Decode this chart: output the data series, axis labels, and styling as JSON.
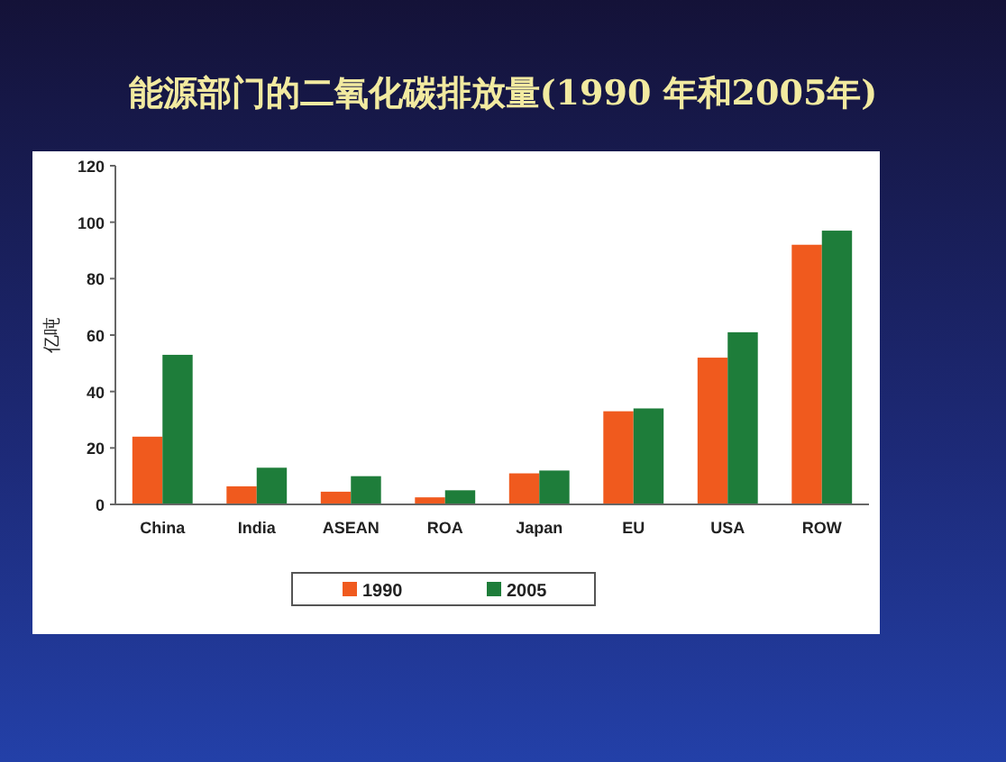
{
  "chart_data": {
    "type": "bar",
    "title": "能源部门的二氧化碳排放量(1990 年和2005年)",
    "ylabel": "亿吨",
    "categories": [
      "China",
      "India",
      "ASEAN",
      "ROA",
      "Japan",
      "EU",
      "USA",
      "ROW"
    ],
    "series": [
      {
        "name": "1990",
        "color": "#f05a1e",
        "values": [
          24,
          6.4,
          4.5,
          2.5,
          11,
          33,
          52,
          92
        ]
      },
      {
        "name": "2005",
        "color": "#1e7d3a",
        "values": [
          53,
          13,
          10,
          5,
          12,
          34,
          61,
          97
        ]
      }
    ],
    "ylim": [
      0,
      120
    ],
    "yticks": [
      0,
      20,
      40,
      60,
      80,
      100,
      120
    ],
    "grid": false,
    "legend": "bottom"
  }
}
